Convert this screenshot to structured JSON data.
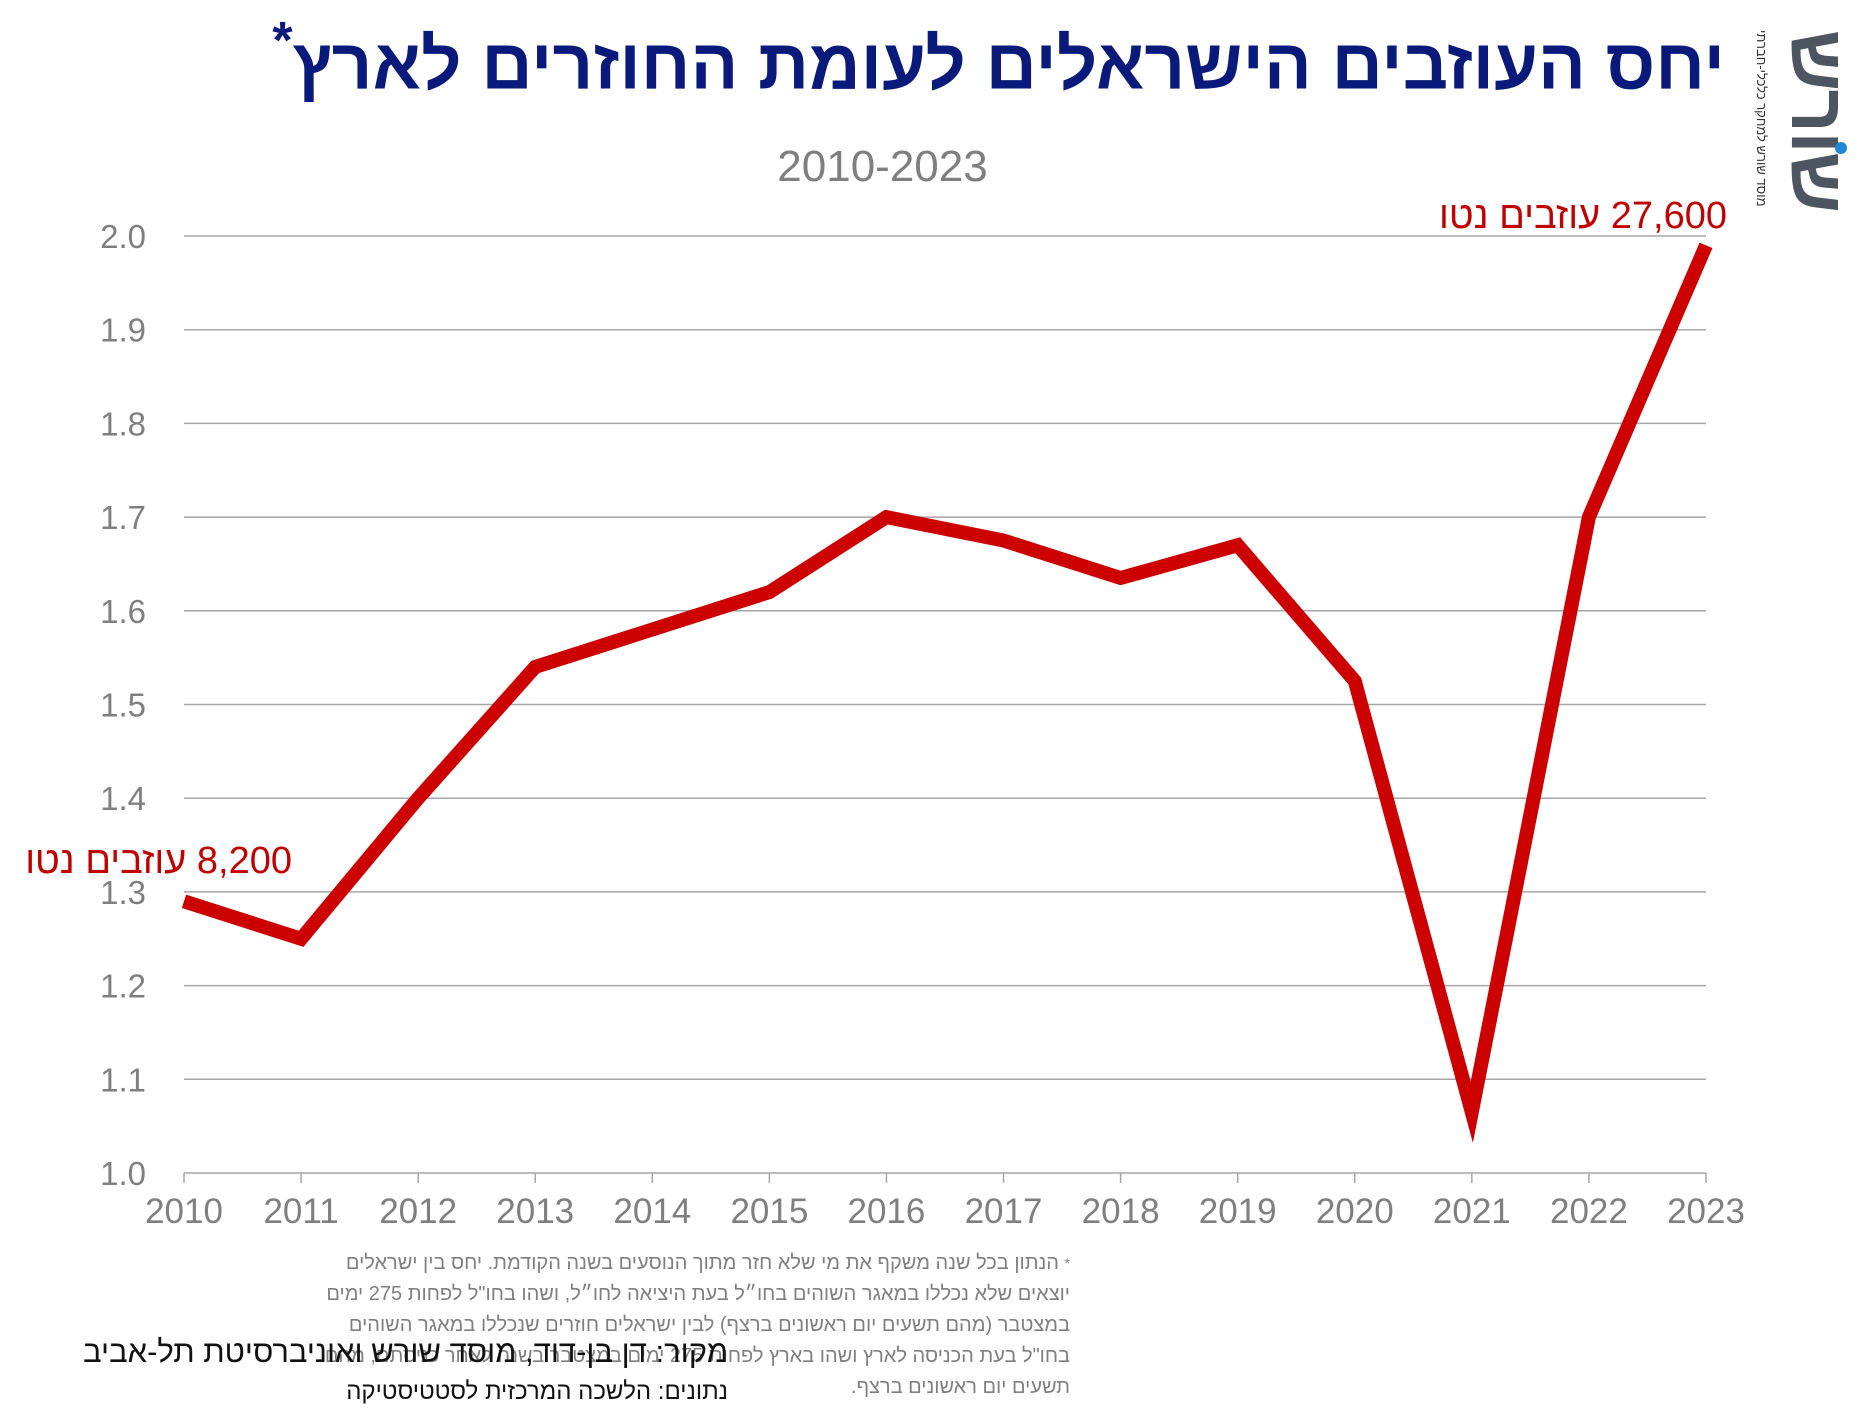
{
  "title": "יחס העוזבים הישראלים לעומת החוזרים לארץ",
  "title_mark": "*",
  "subtitle": "2010-2023",
  "logo": {
    "word": "שורש",
    "tagline": "מוסד שורש למחקר כלכלי-חברתי"
  },
  "colors": {
    "line": "#cc0000",
    "title": "#0a1a7a",
    "grid": "#a6a6a6",
    "axis_text": "#7f7f7f",
    "annotation": "#c00000"
  },
  "chart_data": {
    "type": "line",
    "title": "יחס העוזבים הישראלים לעומת החוזרים לארץ",
    "subtitle": "2010-2023",
    "xlabel": "",
    "ylabel": "",
    "x": [
      2010,
      2011,
      2012,
      2013,
      2014,
      2015,
      2016,
      2017,
      2018,
      2019,
      2020,
      2021,
      2022,
      2023
    ],
    "series": [
      {
        "values": [
          1.29,
          1.25,
          1.4,
          1.54,
          1.58,
          1.62,
          1.7,
          1.675,
          1.635,
          1.67,
          1.525,
          1.065,
          1.7,
          1.99
        ]
      }
    ],
    "ylim": [
      1.0,
      2.0
    ],
    "yticks": [
      "1.0",
      "1.1",
      "1.2",
      "1.3",
      "1.4",
      "1.5",
      "1.6",
      "1.7",
      "1.8",
      "1.9",
      "2.0"
    ],
    "grid": true,
    "annotations": [
      {
        "x": 2010,
        "text": "8,200 עוזבים נטו"
      },
      {
        "x": 2023,
        "text": "27,600 עוזבים נטו"
      }
    ]
  },
  "footnote": {
    "star": "*",
    "text": "הנתון בכל שנה משקף את מי שלא חזר מתוך הנוסעים בשנה הקודמת. יחס בין ישראלים יוצאים שלא נכללו במאגר השוהים בחו״ל בעת היציאה לחו״ל, ושהו בחו\"ל לפחות 275 ימים במצטבר (מהם תשעים יום ראשונים ברצף) לבין ישראלים חוזרים שנכללו במאגר השוהים בחו\"ל בעת הכניסה לארץ ושהו בארץ לפחות 275 ימים במצטבר בשנה לאחר כניסתם, מהם תשעים יום ראשונים ברצף."
  },
  "source": "מקור:  דן בן-דוד, מוסד שורש ואוניברסיטת תל-אביב",
  "data_source": "נתונים: הלשכה המרכזית לסטטיסטיקה"
}
